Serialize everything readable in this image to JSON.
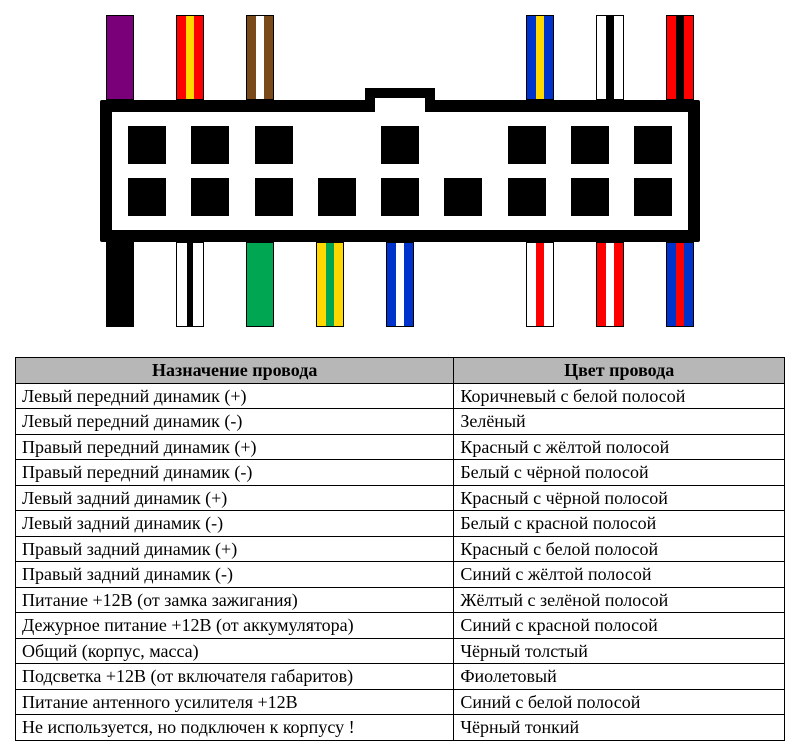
{
  "connector": {
    "body_width": 600,
    "border_color": "#000000",
    "background": "#ffffff",
    "pin_size": 38,
    "top_pins": [
      true,
      true,
      true,
      false,
      true,
      false,
      true,
      true,
      true
    ],
    "bottom_pins": [
      true,
      true,
      true,
      true,
      true,
      true,
      true,
      true,
      true
    ]
  },
  "wires": {
    "top": [
      {
        "base": "#7a007a",
        "stripe": null,
        "name": "violet"
      },
      {
        "base": "#ff0000",
        "stripe": "#ffd800",
        "name": "red-yellow"
      },
      {
        "base": "#7a4a1a",
        "stripe": "#ffffff",
        "name": "brown-white"
      },
      {
        "empty": true
      },
      {
        "empty": true
      },
      {
        "empty": true
      },
      {
        "base": "#0033cc",
        "stripe": "#ffd800",
        "name": "blue-yellow"
      },
      {
        "base": "#ffffff",
        "stripe": "#000000",
        "name": "white-black"
      },
      {
        "base": "#ff0000",
        "stripe": "#000000",
        "name": "red-black"
      }
    ],
    "bottom": [
      {
        "base": "#000000",
        "stripe": null,
        "name": "black-thick"
      },
      {
        "base": "#ffffff",
        "stripe": "#000000",
        "name": "black-thin",
        "thin": true
      },
      {
        "base": "#00a651",
        "stripe": null,
        "name": "green"
      },
      {
        "base": "#ffd800",
        "stripe": "#00a651",
        "name": "yellow-green"
      },
      {
        "base": "#0033cc",
        "stripe": "#ffffff",
        "name": "blue-white"
      },
      {
        "empty": true
      },
      {
        "base": "#ffffff",
        "stripe": "#ff0000",
        "name": "white-red"
      },
      {
        "base": "#ff0000",
        "stripe": "#ffffff",
        "name": "red-white"
      },
      {
        "base": "#0033cc",
        "stripe": "#ff0000",
        "name": "blue-red"
      }
    ]
  },
  "table": {
    "headers": [
      "Назначение провода",
      "Цвет провода"
    ],
    "rows": [
      [
        "Левый передний динамик (+)",
        "Коричневый с белой полосой"
      ],
      [
        "Левый передний динамик (-)",
        "Зелёный"
      ],
      [
        "Правый передний динамик (+)",
        "Красный с жёлтой полосой"
      ],
      [
        "Правый передний динамик (-)",
        "Белый с чёрной полосой"
      ],
      [
        "Левый задний динамик (+)",
        "Красный с чёрной полосой"
      ],
      [
        "Левый задний динамик (-)",
        "Белый с красной полосой"
      ],
      [
        "Правый задний динамик (+)",
        "Красный с белой полосой"
      ],
      [
        "Правый задний динамик (-)",
        "Синий с жёлтой полосой"
      ],
      [
        "Питание +12В (от замка зажигания)",
        "Жёлтый с зелёной полосой"
      ],
      [
        "Дежурное питание +12В (от аккумулятора)",
        "Синий с красной полосой"
      ],
      [
        "Общий (корпус, масса)",
        "Чёрный толстый"
      ],
      [
        "Подсветка +12В (от включателя габаритов)",
        "Фиолетовый"
      ],
      [
        "Питание антенного усилителя +12В",
        "Синий с белой полосой"
      ],
      [
        "Не используется, но подключен к корпусу !",
        "Чёрный тонкий"
      ]
    ]
  }
}
